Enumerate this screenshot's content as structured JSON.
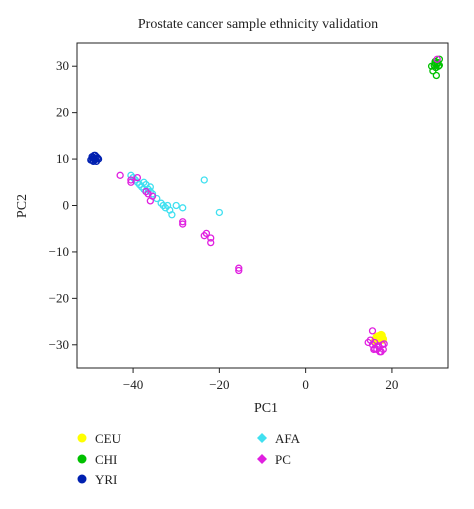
{
  "chart_data": {
    "type": "scatter",
    "title": "Prostate cancer sample ethnicity validation",
    "xlabel": "PC1",
    "ylabel": "PC2",
    "xlim": [
      -53,
      33
    ],
    "ylim": [
      -35,
      35
    ],
    "xticks": [
      -40,
      -20,
      0,
      20
    ],
    "yticks": [
      -30,
      -20,
      -10,
      0,
      10,
      20,
      30
    ],
    "grid": false,
    "legend_position": "bottom",
    "series": [
      {
        "name": "CEU",
        "color": "#ffff00",
        "marker": "filled-circle",
        "points": [
          [
            16.5,
            -28.5
          ],
          [
            17.5,
            -28
          ],
          [
            17,
            -29
          ],
          [
            16.8,
            -28.3
          ],
          [
            17.8,
            -28.8
          ],
          [
            16.2,
            -29.2
          ],
          [
            17.2,
            -28.7
          ]
        ]
      },
      {
        "name": "CHI",
        "color": "#00c000",
        "marker": "open-circle",
        "points": [
          [
            30,
            31
          ],
          [
            30.5,
            30.5
          ],
          [
            30.2,
            29.7
          ],
          [
            29.8,
            30.2
          ],
          [
            30.8,
            30
          ],
          [
            31,
            31.5
          ],
          [
            29.5,
            29
          ],
          [
            30.3,
            28
          ],
          [
            29.2,
            30
          ],
          [
            30.6,
            30.8
          ],
          [
            31,
            30.2
          ],
          [
            30,
            30.6
          ]
        ]
      },
      {
        "name": "YRI",
        "color": "#0020b0",
        "marker": "open-circle",
        "points": [
          [
            -49.5,
            10.5
          ],
          [
            -49,
            10
          ],
          [
            -48.5,
            10.5
          ],
          [
            -49.2,
            9.5
          ],
          [
            -48.8,
            10.8
          ],
          [
            -49.8,
            9.8
          ],
          [
            -48.2,
            10.2
          ],
          [
            -48.5,
            9.5
          ],
          [
            -49,
            10.8
          ],
          [
            -48,
            10
          ],
          [
            -49.5,
            9.7
          ],
          [
            -48.6,
            10.1
          ],
          [
            -49.3,
            10.3
          ],
          [
            -48.9,
            9.8
          ]
        ]
      },
      {
        "name": "AFA",
        "color": "#40e0f0",
        "marker": "open-circle",
        "points": [
          [
            -40.5,
            6.5
          ],
          [
            -40,
            6
          ],
          [
            -39.5,
            5.5
          ],
          [
            -39,
            5
          ],
          [
            -38.5,
            4.5
          ],
          [
            -38,
            4
          ],
          [
            -37.5,
            5
          ],
          [
            -37,
            4.5
          ],
          [
            -37.5,
            3.5
          ],
          [
            -36.5,
            3.5
          ],
          [
            -36,
            3
          ],
          [
            -37,
            3
          ],
          [
            -34.5,
            1.5
          ],
          [
            -33.5,
            0.5
          ],
          [
            -33,
            0
          ],
          [
            -32.5,
            -0.5
          ],
          [
            -32,
            0
          ],
          [
            -31.5,
            -1
          ],
          [
            -31,
            -2
          ],
          [
            -30,
            0
          ],
          [
            -28.5,
            -0.5
          ],
          [
            -23.5,
            5.5
          ],
          [
            -20,
            -1.5
          ],
          [
            -36,
            4
          ],
          [
            -35.5,
            2.5
          ]
        ]
      },
      {
        "name": "PC",
        "color": "#e020e0",
        "marker": "open-circle",
        "points": [
          [
            -43,
            6.5
          ],
          [
            -40.5,
            5
          ],
          [
            -40.5,
            5.5
          ],
          [
            -39,
            6
          ],
          [
            -37,
            3
          ],
          [
            -36.5,
            2.5
          ],
          [
            -36,
            1
          ],
          [
            -35.5,
            2
          ],
          [
            -28.5,
            -4
          ],
          [
            -28.5,
            -3.5
          ],
          [
            -23.5,
            -6.5
          ],
          [
            -23,
            -6
          ],
          [
            -22,
            -7
          ],
          [
            -22,
            -8
          ],
          [
            -15.5,
            -13.5
          ],
          [
            -15.5,
            -14
          ],
          [
            30.5,
            31.5
          ],
          [
            15.5,
            -27
          ],
          [
            15,
            -29
          ],
          [
            15.5,
            -30
          ],
          [
            16,
            -29.5
          ],
          [
            16.5,
            -31
          ],
          [
            17,
            -30.5
          ],
          [
            17.5,
            -31.5
          ],
          [
            17.8,
            -30
          ],
          [
            18,
            -31
          ],
          [
            18.2,
            -29.8
          ],
          [
            16.8,
            -30.2
          ],
          [
            14.5,
            -29.5
          ],
          [
            15.8,
            -31
          ],
          [
            17.2,
            -31.5
          ],
          [
            16,
            -30.8
          ]
        ]
      }
    ]
  }
}
